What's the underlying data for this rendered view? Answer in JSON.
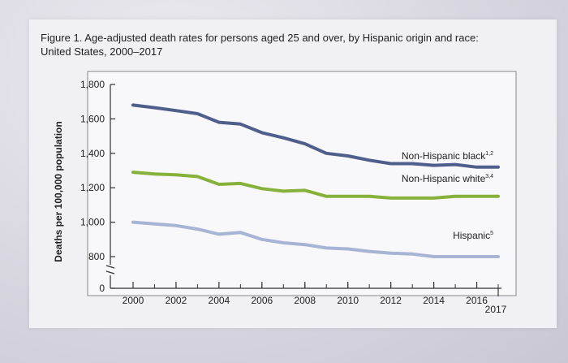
{
  "figure": {
    "title_line1": "Figure 1. Age-adjusted death rates for persons aged 25 and over, by Hispanic origin and race:",
    "title_line2": "United States, 2000–2017"
  },
  "chart_data": {
    "type": "line",
    "title": "Figure 1. Age-adjusted death rates for persons aged 25 and over, by Hispanic origin and race: United States, 2000–2017",
    "xlabel": "",
    "ylabel": "Deaths per 100,000 population",
    "xlim": [
      2000,
      2017
    ],
    "ylim": [
      0,
      1800
    ],
    "y_break": true,
    "y_ticks": [
      0,
      800,
      1000,
      1200,
      1400,
      1600,
      1800
    ],
    "y_tick_labels": [
      "0",
      "800",
      "1,000",
      "1,200",
      "1,400",
      "1,600",
      "1,800"
    ],
    "x_ticks": [
      2000,
      2002,
      2004,
      2006,
      2008,
      2010,
      2012,
      2014,
      2016,
      2017
    ],
    "x_tick_labels": [
      "2000",
      "2002",
      "2004",
      "2006",
      "2008",
      "2010",
      "2012",
      "2014",
      "2016",
      "2017"
    ],
    "x": [
      2000,
      2001,
      2002,
      2003,
      2004,
      2005,
      2006,
      2007,
      2008,
      2009,
      2010,
      2011,
      2012,
      2013,
      2014,
      2015,
      2016,
      2017
    ],
    "grid": false,
    "series": [
      {
        "name": "Non-Hispanic black",
        "label_superscript": "1,2",
        "color": "#4e5f8c",
        "values": [
          1680,
          1665,
          1648,
          1630,
          1580,
          1570,
          1520,
          1490,
          1455,
          1400,
          1385,
          1360,
          1340,
          1340,
          1330,
          1335,
          1320,
          1320
        ]
      },
      {
        "name": "Non-Hispanic white",
        "label_superscript": "3,4",
        "color": "#86b23c",
        "values": [
          1290,
          1280,
          1275,
          1265,
          1220,
          1225,
          1195,
          1180,
          1185,
          1150,
          1150,
          1150,
          1140,
          1140,
          1140,
          1150,
          1150,
          1150
        ]
      },
      {
        "name": "Hispanic",
        "label_superscript": "5",
        "color": "#a8b4d4",
        "values": [
          1000,
          990,
          980,
          960,
          930,
          940,
          900,
          880,
          870,
          850,
          845,
          830,
          820,
          815,
          800,
          800,
          800,
          800
        ]
      }
    ]
  }
}
